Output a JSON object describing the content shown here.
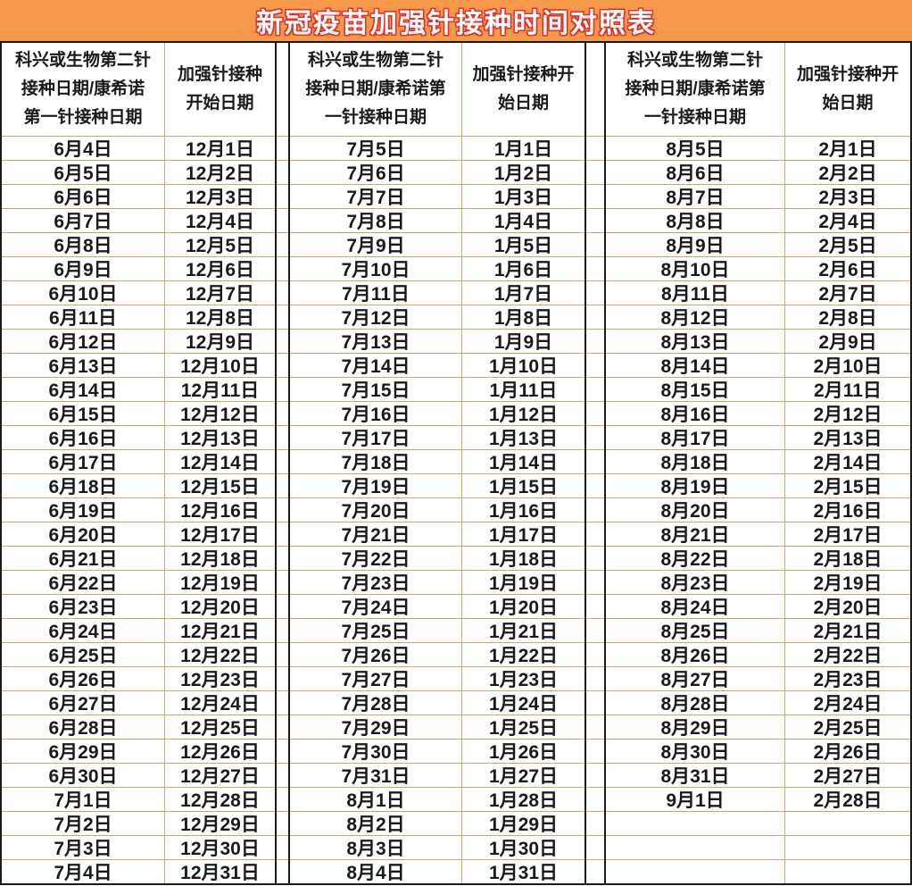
{
  "chart_data": {
    "type": "table",
    "title": "新冠疫苗加强针接种时间对照表",
    "row_count": 31,
    "pairs": [
      {
        "dose_header_lines": [
          "科兴或生物第二针",
          "接种日期/康希诺",
          "第一针接种日期"
        ],
        "booster_header_lines": [
          "加强针接种",
          "开始日期"
        ],
        "dose_dates": [
          "6月4日",
          "6月5日",
          "6月6日",
          "6月7日",
          "6月8日",
          "6月9日",
          "6月10日",
          "6月11日",
          "6月12日",
          "6月13日",
          "6月14日",
          "6月15日",
          "6月16日",
          "6月17日",
          "6月18日",
          "6月19日",
          "6月20日",
          "6月21日",
          "6月22日",
          "6月23日",
          "6月24日",
          "6月25日",
          "6月26日",
          "6月27日",
          "6月28日",
          "6月29日",
          "6月30日",
          "7月1日",
          "7月2日",
          "7月3日",
          "7月4日"
        ],
        "booster_dates": [
          "12月1日",
          "12月2日",
          "12月3日",
          "12月4日",
          "12月5日",
          "12月6日",
          "12月7日",
          "12月8日",
          "12月9日",
          "12月10日",
          "12月11日",
          "12月12日",
          "12月13日",
          "12月14日",
          "12月15日",
          "12月16日",
          "12月17日",
          "12月18日",
          "12月19日",
          "12月20日",
          "12月21日",
          "12月22日",
          "12月23日",
          "12月24日",
          "12月25日",
          "12月26日",
          "12月27日",
          "12月28日",
          "12月29日",
          "12月30日",
          "12月31日"
        ]
      },
      {
        "dose_header_lines": [
          "科兴或生物第二针",
          "接种日期/康希诺第",
          "一针接种日期"
        ],
        "booster_header_lines": [
          "加强针接种开",
          "始日期"
        ],
        "dose_dates": [
          "7月5日",
          "7月6日",
          "7月7日",
          "7月8日",
          "7月9日",
          "7月10日",
          "7月11日",
          "7月12日",
          "7月13日",
          "7月14日",
          "7月15日",
          "7月16日",
          "7月17日",
          "7月18日",
          "7月19日",
          "7月20日",
          "7月21日",
          "7月22日",
          "7月23日",
          "7月24日",
          "7月25日",
          "7月26日",
          "7月27日",
          "7月28日",
          "7月29日",
          "7月30日",
          "7月31日",
          "8月1日",
          "8月2日",
          "8月3日",
          "8月4日"
        ],
        "booster_dates": [
          "1月1日",
          "1月2日",
          "1月3日",
          "1月4日",
          "1月5日",
          "1月6日",
          "1月7日",
          "1月8日",
          "1月9日",
          "1月10日",
          "1月11日",
          "1月12日",
          "1月13日",
          "1月14日",
          "1月15日",
          "1月16日",
          "1月17日",
          "1月18日",
          "1月19日",
          "1月20日",
          "1月21日",
          "1月22日",
          "1月23日",
          "1月24日",
          "1月25日",
          "1月26日",
          "1月27日",
          "1月28日",
          "1月29日",
          "1月30日",
          "1月31日"
        ]
      },
      {
        "dose_header_lines": [
          "科兴或生物第二针",
          "接种日期/康希诺第",
          "一针接种日期"
        ],
        "booster_header_lines": [
          "加强针接种开",
          "始日期"
        ],
        "dose_dates": [
          "8月5日",
          "8月6日",
          "8月7日",
          "8月8日",
          "8月9日",
          "8月10日",
          "8月11日",
          "8月12日",
          "8月13日",
          "8月14日",
          "8月15日",
          "8月16日",
          "8月17日",
          "8月18日",
          "8月19日",
          "8月20日",
          "8月21日",
          "8月22日",
          "8月23日",
          "8月24日",
          "8月25日",
          "8月26日",
          "8月27日",
          "8月28日",
          "8月29日",
          "8月30日",
          "8月31日",
          "9月1日",
          "",
          "",
          ""
        ],
        "booster_dates": [
          "2月1日",
          "2月2日",
          "2月3日",
          "2月4日",
          "2月5日",
          "2月6日",
          "2月7日",
          "2月8日",
          "2月9日",
          "2月10日",
          "2月11日",
          "2月12日",
          "2月13日",
          "2月14日",
          "2月15日",
          "2月16日",
          "2月17日",
          "2月18日",
          "2月19日",
          "2月20日",
          "2月21日",
          "2月22日",
          "2月23日",
          "2月24日",
          "2月25日",
          "2月26日",
          "2月27日",
          "2月28日",
          "",
          "",
          ""
        ]
      }
    ]
  },
  "colors": {
    "title_bg": "#F5984A",
    "title_text": "#FFFFFF",
    "title_outline": "#E0332B",
    "grid_line": "#DCA262",
    "border": "#1A1A1A",
    "text": "#1A1A1A",
    "bg": "#FFFFFF"
  }
}
